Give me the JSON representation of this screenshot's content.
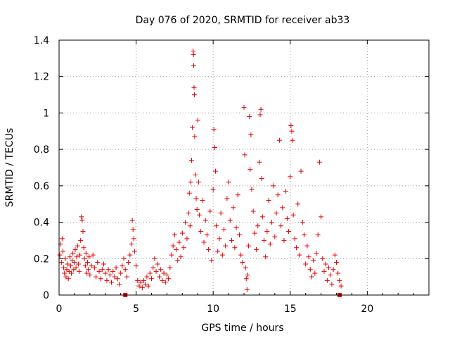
{
  "chart_data": {
    "type": "scatter",
    "title": "Day 076 of 2020, SRMTID for receiver ab33",
    "xlabel": "GPS time / hours",
    "ylabel": "SRMTID / TECUs",
    "xlim": [
      0,
      24
    ],
    "ylim": [
      0,
      1.4
    ],
    "xticks": [
      0,
      5,
      10,
      15,
      20
    ],
    "xtick_labels": [
      "0",
      "5",
      "10",
      "15",
      "20"
    ],
    "yticks": [
      0,
      0.2,
      0.4,
      0.6,
      0.8,
      1.0,
      1.2,
      1.4
    ],
    "ytick_labels": [
      "0",
      "0.2",
      "0.4",
      "0.6",
      "0.8",
      "1",
      "1.2",
      "1.4"
    ],
    "grid": true,
    "marker": "plus",
    "color": "#e00000",
    "series": [
      {
        "name": "SRMTID",
        "points": [
          [
            0.05,
            0.22
          ],
          [
            0.1,
            0.28
          ],
          [
            0.15,
            0.18
          ],
          [
            0.2,
            0.31
          ],
          [
            0.25,
            0.24
          ],
          [
            0.3,
            0.15
          ],
          [
            0.35,
            0.12
          ],
          [
            0.4,
            0.2
          ],
          [
            0.45,
            0.1
          ],
          [
            0.5,
            0.14
          ],
          [
            0.55,
            0.17
          ],
          [
            0.6,
            0.09
          ],
          [
            0.65,
            0.13
          ],
          [
            0.7,
            0.21
          ],
          [
            0.75,
            0.16
          ],
          [
            0.8,
            0.12
          ],
          [
            0.85,
            0.19
          ],
          [
            0.9,
            0.23
          ],
          [
            0.95,
            0.14
          ],
          [
            1.0,
            0.18
          ],
          [
            1.05,
            0.25
          ],
          [
            1.1,
            0.15
          ],
          [
            1.15,
            0.21
          ],
          [
            1.2,
            0.27
          ],
          [
            1.25,
            0.17
          ],
          [
            1.3,
            0.13
          ],
          [
            1.35,
            0.22
          ],
          [
            1.4,
            0.3
          ],
          [
            1.45,
            0.43
          ],
          [
            1.5,
            0.41
          ],
          [
            1.55,
            0.35
          ],
          [
            1.6,
            0.26
          ],
          [
            1.65,
            0.2
          ],
          [
            1.7,
            0.16
          ],
          [
            1.75,
            0.23
          ],
          [
            1.8,
            0.12
          ],
          [
            1.85,
            0.18
          ],
          [
            1.9,
            0.14
          ],
          [
            1.95,
            0.21
          ],
          [
            2.0,
            0.11
          ],
          [
            2.1,
            0.16
          ],
          [
            2.2,
            0.22
          ],
          [
            2.3,
            0.15
          ],
          [
            2.4,
            0.1
          ],
          [
            2.5,
            0.18
          ],
          [
            2.6,
            0.13
          ],
          [
            2.7,
            0.09
          ],
          [
            2.8,
            0.14
          ],
          [
            2.9,
            0.17
          ],
          [
            3.0,
            0.12
          ],
          [
            3.1,
            0.08
          ],
          [
            3.2,
            0.14
          ],
          [
            3.3,
            0.11
          ],
          [
            3.4,
            0.07
          ],
          [
            3.5,
            0.13
          ],
          [
            3.6,
            0.1
          ],
          [
            3.7,
            0.15
          ],
          [
            3.8,
            0.09
          ],
          [
            3.9,
            0.06
          ],
          [
            4.0,
            0.12
          ],
          [
            4.1,
            0.16
          ],
          [
            4.2,
            0.2
          ],
          [
            4.3,
            0.14
          ],
          [
            4.4,
            0.1
          ],
          [
            4.5,
            0.18
          ],
          [
            4.6,
            0.22
          ],
          [
            4.7,
            0.28
          ],
          [
            4.75,
            0.41
          ],
          [
            4.8,
            0.36
          ],
          [
            4.85,
            0.31
          ],
          [
            4.9,
            0.24
          ],
          [
            5.0,
            0.16
          ],
          [
            5.1,
            0.08
          ],
          [
            5.2,
            0.05
          ],
          [
            5.3,
            0.07
          ],
          [
            5.4,
            0.04
          ],
          [
            5.5,
            0.08
          ],
          [
            5.6,
            0.06
          ],
          [
            5.7,
            0.1
          ],
          [
            5.8,
            0.05
          ],
          [
            5.9,
            0.12
          ],
          [
            6.0,
            0.09
          ],
          [
            6.1,
            0.15
          ],
          [
            6.2,
            0.2
          ],
          [
            6.3,
            0.13
          ],
          [
            6.4,
            0.17
          ],
          [
            6.5,
            0.1
          ],
          [
            6.6,
            0.14
          ],
          [
            6.7,
            0.08
          ],
          [
            6.8,
            0.12
          ],
          [
            6.9,
            0.07
          ],
          [
            7.0,
            0.11
          ],
          [
            7.1,
            0.09
          ],
          [
            7.2,
            0.15
          ],
          [
            7.3,
            0.22
          ],
          [
            7.4,
            0.27
          ],
          [
            7.5,
            0.33
          ],
          [
            7.6,
            0.25
          ],
          [
            7.7,
            0.19
          ],
          [
            7.8,
            0.29
          ],
          [
            7.9,
            0.21
          ],
          [
            8.0,
            0.34
          ],
          [
            8.1,
            0.26
          ],
          [
            8.2,
            0.4
          ],
          [
            8.3,
            0.31
          ],
          [
            8.4,
            0.45
          ],
          [
            8.45,
            0.56
          ],
          [
            8.5,
            0.38
          ],
          [
            8.55,
            0.62
          ],
          [
            8.6,
            0.74
          ],
          [
            8.65,
            0.92
          ],
          [
            8.7,
            1.34
          ],
          [
            8.72,
            1.32
          ],
          [
            8.74,
            1.26
          ],
          [
            8.76,
            1.14
          ],
          [
            8.78,
            1.1
          ],
          [
            8.8,
            0.87
          ],
          [
            8.85,
            0.66
          ],
          [
            8.9,
            0.53
          ],
          [
            8.95,
            0.47
          ],
          [
            9.0,
            0.96
          ],
          [
            9.05,
            0.62
          ],
          [
            9.1,
            0.44
          ],
          [
            9.2,
            0.35
          ],
          [
            9.3,
            0.52
          ],
          [
            9.4,
            0.29
          ],
          [
            9.5,
            0.41
          ],
          [
            9.6,
            0.33
          ],
          [
            9.7,
            0.25
          ],
          [
            9.8,
            0.46
          ],
          [
            9.9,
            0.19
          ],
          [
            10.0,
            0.58
          ],
          [
            10.05,
            0.91
          ],
          [
            10.1,
            0.81
          ],
          [
            10.15,
            0.68
          ],
          [
            10.2,
            0.38
          ],
          [
            10.3,
            0.24
          ],
          [
            10.4,
            0.31
          ],
          [
            10.5,
            0.45
          ],
          [
            10.6,
            0.22
          ],
          [
            10.7,
            0.36
          ],
          [
            10.8,
            0.27
          ],
          [
            10.9,
            0.53
          ],
          [
            11.0,
            0.62
          ],
          [
            11.1,
            0.41
          ],
          [
            11.2,
            0.3
          ],
          [
            11.3,
            0.48
          ],
          [
            11.4,
            0.26
          ],
          [
            11.5,
            0.37
          ],
          [
            11.6,
            0.55
          ],
          [
            11.7,
            0.33
          ],
          [
            11.8,
            0.22
          ],
          [
            11.9,
            0.18
          ],
          [
            12.0,
            1.03
          ],
          [
            12.05,
            0.77
          ],
          [
            12.1,
            0.15
          ],
          [
            12.15,
            0.09
          ],
          [
            12.2,
            0.03
          ],
          [
            12.25,
            0.11
          ],
          [
            12.3,
            0.27
          ],
          [
            12.35,
            0.98
          ],
          [
            12.4,
            0.69
          ],
          [
            12.45,
            0.88
          ],
          [
            12.5,
            0.58
          ],
          [
            12.6,
            0.46
          ],
          [
            12.7,
            0.34
          ],
          [
            12.8,
            0.25
          ],
          [
            12.9,
            0.38
          ],
          [
            13.0,
            0.73
          ],
          [
            13.05,
            0.99
          ],
          [
            13.1,
            1.02
          ],
          [
            13.15,
            0.64
          ],
          [
            13.2,
            0.43
          ],
          [
            13.3,
            0.3
          ],
          [
            13.4,
            0.21
          ],
          [
            13.5,
            0.35
          ],
          [
            13.6,
            0.52
          ],
          [
            13.7,
            0.28
          ],
          [
            13.8,
            0.4
          ],
          [
            13.9,
            0.6
          ],
          [
            14.0,
            0.32
          ],
          [
            14.1,
            0.45
          ],
          [
            14.2,
            0.55
          ],
          [
            14.3,
            0.85
          ],
          [
            14.4,
            0.38
          ],
          [
            14.5,
            0.48
          ],
          [
            14.6,
            0.3
          ],
          [
            14.7,
            0.57
          ],
          [
            14.8,
            0.42
          ],
          [
            14.9,
            0.35
          ],
          [
            15.0,
            0.65
          ],
          [
            15.05,
            0.93
          ],
          [
            15.1,
            0.9
          ],
          [
            15.15,
            0.85
          ],
          [
            15.2,
            0.44
          ],
          [
            15.3,
            0.31
          ],
          [
            15.4,
            0.26
          ],
          [
            15.5,
            0.5
          ],
          [
            15.6,
            0.22
          ],
          [
            15.7,
            0.68
          ],
          [
            15.8,
            0.4
          ],
          [
            15.9,
            0.33
          ],
          [
            16.0,
            0.17
          ],
          [
            16.1,
            0.27
          ],
          [
            16.2,
            0.21
          ],
          [
            16.3,
            0.14
          ],
          [
            16.4,
            0.1
          ],
          [
            16.5,
            0.19
          ],
          [
            16.6,
            0.12
          ],
          [
            16.7,
            0.23
          ],
          [
            16.8,
            0.33
          ],
          [
            16.9,
            0.73
          ],
          [
            17.0,
            0.43
          ],
          [
            17.1,
            0.2
          ],
          [
            17.2,
            0.13
          ],
          [
            17.3,
            0.17
          ],
          [
            17.4,
            0.08
          ],
          [
            17.5,
            0.15
          ],
          [
            17.6,
            0.11
          ],
          [
            17.7,
            0.06
          ],
          [
            17.8,
            0.14
          ],
          [
            17.9,
            0.22
          ],
          [
            18.0,
            0.18
          ],
          [
            18.1,
            0.12
          ],
          [
            18.2,
            0.08
          ],
          [
            18.3,
            0.05
          ]
        ],
        "zero_markers": [
          4.3,
          18.2
        ]
      }
    ]
  }
}
